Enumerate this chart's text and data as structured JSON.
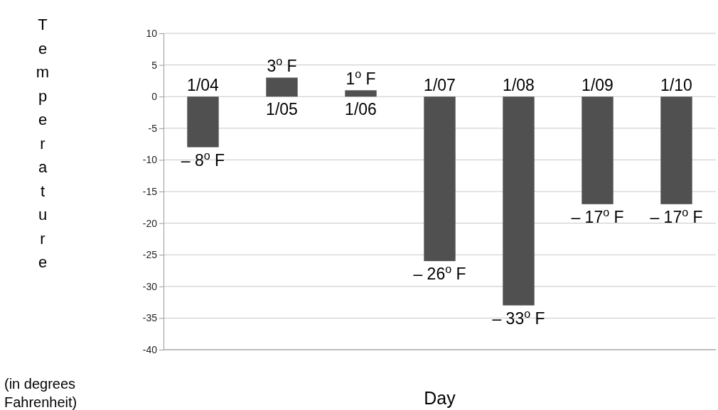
{
  "chart_data": {
    "type": "bar",
    "xlabel": "Day",
    "annotations": [
      "Temperature",
      "(in degrees Fahrenheit)"
    ],
    "categories": [
      "1/04",
      "1/05",
      "1/06",
      "1/07",
      "1/08",
      "1/09",
      "1/10"
    ],
    "values": [
      -8,
      3,
      1,
      -26,
      -33,
      -17,
      -17
    ],
    "value_labels": [
      "– 8$^{o}$ F",
      "3$^{o}$ F",
      "1$^{o}$ F",
      "– 26$^{o}$ F",
      "– 33$^{o}$ F",
      "– 17$^{o}$ F",
      "– 17$^{o}$ F"
    ],
    "color": "#505050",
    "ylim": [
      -40,
      10
    ],
    "yticks": [
      -40,
      -35,
      -30,
      -25,
      -20,
      -15,
      -10,
      -5,
      0,
      5,
      10
    ],
    "grid": "y"
  }
}
